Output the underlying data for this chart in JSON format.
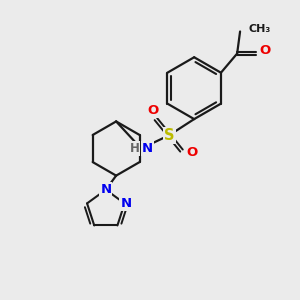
{
  "background_color": "#ebebeb",
  "bond_color": "#1a1a1a",
  "atom_colors": {
    "N": "#0000ee",
    "O": "#ee0000",
    "S": "#bbbb00",
    "C": "#1a1a1a",
    "H": "#666666"
  },
  "figsize": [
    3.0,
    3.0
  ],
  "dpi": 100
}
